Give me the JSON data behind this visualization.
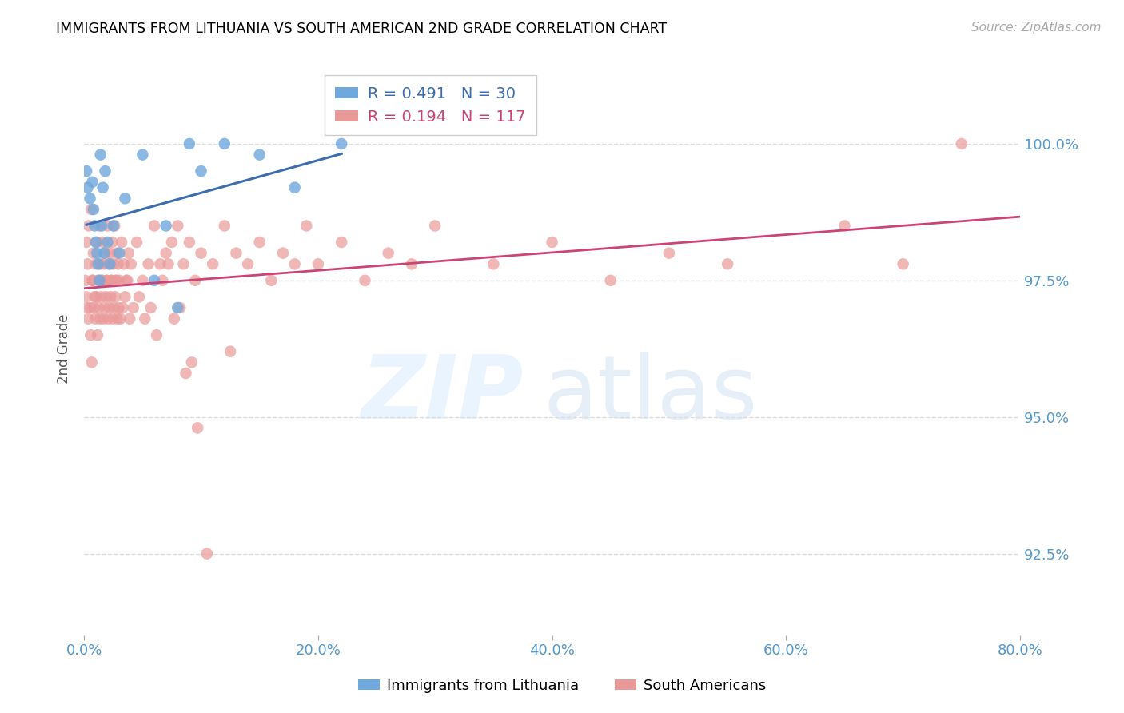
{
  "title": "IMMIGRANTS FROM LITHUANIA VS SOUTH AMERICAN 2ND GRADE CORRELATION CHART",
  "source": "Source: ZipAtlas.com",
  "ylabel": "2nd Grade",
  "xlim": [
    0.0,
    80.0
  ],
  "ylim": [
    91.0,
    101.5
  ],
  "yticks": [
    92.5,
    95.0,
    97.5,
    100.0
  ],
  "ytick_labels": [
    "92.5%",
    "95.0%",
    "97.5%",
    "100.0%"
  ],
  "xticks": [
    0.0,
    20.0,
    40.0,
    60.0,
    80.0
  ],
  "xtick_labels": [
    "0.0%",
    "20.0%",
    "40.0%",
    "60.0%",
    "80.0%"
  ],
  "legend_label1": "R = 0.491   N = 30",
  "legend_label2": "R = 0.194   N = 117",
  "series1_color": "#6fa8dc",
  "series2_color": "#ea9999",
  "trendline1_color": "#3d6daf",
  "trendline2_color": "#cc4477",
  "series1_label": "Immigrants from Lithuania",
  "series2_label": "South Americans",
  "background_color": "#ffffff",
  "title_color": "#000000",
  "axis_label_color": "#555555",
  "tick_color": "#5599cc",
  "grid_color": "#dddddd",
  "series1_x": [
    0.2,
    0.3,
    0.5,
    0.7,
    0.8,
    0.9,
    1.0,
    1.1,
    1.2,
    1.3,
    1.4,
    1.5,
    1.6,
    1.7,
    1.8,
    2.0,
    2.2,
    2.5,
    3.0,
    3.5,
    5.0,
    6.0,
    7.0,
    8.0,
    9.0,
    10.0,
    12.0,
    15.0,
    18.0,
    22.0
  ],
  "series1_y": [
    99.5,
    99.2,
    99.0,
    99.3,
    98.8,
    98.5,
    98.2,
    98.0,
    97.8,
    97.5,
    99.8,
    98.5,
    99.2,
    98.0,
    99.5,
    98.2,
    97.8,
    98.5,
    98.0,
    99.0,
    99.8,
    97.5,
    98.5,
    97.0,
    100.0,
    99.5,
    100.0,
    99.8,
    99.2,
    100.0
  ],
  "series2_x": [
    0.1,
    0.2,
    0.3,
    0.4,
    0.5,
    0.6,
    0.7,
    0.8,
    0.9,
    1.0,
    1.1,
    1.2,
    1.3,
    1.4,
    1.5,
    1.6,
    1.7,
    1.8,
    1.9,
    2.0,
    2.1,
    2.2,
    2.3,
    2.4,
    2.5,
    2.6,
    2.7,
    2.8,
    2.9,
    3.0,
    3.2,
    3.4,
    3.6,
    3.8,
    4.0,
    4.5,
    5.0,
    5.5,
    6.0,
    6.5,
    7.0,
    7.5,
    8.0,
    8.5,
    9.0,
    9.5,
    10.0,
    11.0,
    12.0,
    13.0,
    14.0,
    15.0,
    16.0,
    17.0,
    18.0,
    19.0,
    20.0,
    22.0,
    24.0,
    26.0,
    28.0,
    30.0,
    35.0,
    40.0,
    45.0,
    50.0,
    55.0,
    65.0,
    70.0,
    75.0,
    0.15,
    0.25,
    0.35,
    0.55,
    0.65,
    0.75,
    0.85,
    0.95,
    1.05,
    1.15,
    1.25,
    1.35,
    1.45,
    1.55,
    1.65,
    1.75,
    1.85,
    1.95,
    2.05,
    2.15,
    2.25,
    2.35,
    2.45,
    2.55,
    2.65,
    2.75,
    2.85,
    2.95,
    3.1,
    3.3,
    3.5,
    3.7,
    3.9,
    4.2,
    4.7,
    5.2,
    5.7,
    6.2,
    6.7,
    7.2,
    7.7,
    8.2,
    8.7,
    9.2,
    9.7,
    10.5,
    12.5
  ],
  "series2_y": [
    97.5,
    98.2,
    97.8,
    98.5,
    97.0,
    98.8,
    97.5,
    98.0,
    97.2,
    97.8,
    98.2,
    97.5,
    98.5,
    97.8,
    97.5,
    98.2,
    97.8,
    98.0,
    97.5,
    98.5,
    97.8,
    98.0,
    97.5,
    98.2,
    97.8,
    98.5,
    97.5,
    98.0,
    97.8,
    97.5,
    98.2,
    97.8,
    97.5,
    98.0,
    97.8,
    98.2,
    97.5,
    97.8,
    98.5,
    97.8,
    98.0,
    98.2,
    98.5,
    97.8,
    98.2,
    97.5,
    98.0,
    97.8,
    98.5,
    98.0,
    97.8,
    98.2,
    97.5,
    98.0,
    97.8,
    98.5,
    97.8,
    98.2,
    97.5,
    98.0,
    97.8,
    98.5,
    97.8,
    98.2,
    97.5,
    98.0,
    97.8,
    98.5,
    97.8,
    100.0,
    97.2,
    97.0,
    96.8,
    96.5,
    96.0,
    97.5,
    97.0,
    96.8,
    97.2,
    96.5,
    97.0,
    96.8,
    97.2,
    97.5,
    96.8,
    97.0,
    97.2,
    97.5,
    96.8,
    97.0,
    97.2,
    97.5,
    96.8,
    97.0,
    97.2,
    97.5,
    96.8,
    97.0,
    96.8,
    97.0,
    97.2,
    97.5,
    96.8,
    97.0,
    97.2,
    96.8,
    97.0,
    96.5,
    97.5,
    97.8,
    96.8,
    97.0,
    95.8,
    96.0,
    94.8,
    92.5,
    96.2
  ]
}
